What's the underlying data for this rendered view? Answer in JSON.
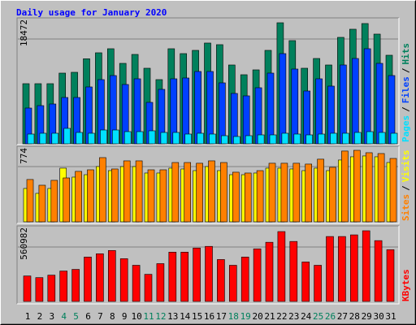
{
  "chart_data": [
    {
      "type": "bar",
      "title": "Daily usage for January 2020",
      "legend_separator": "/",
      "ylim": [
        0,
        18472
      ],
      "yticks": [
        18472
      ],
      "grid": true,
      "series": [
        {
          "name": "Hits",
          "color": "#00805c",
          "values": [
            9176,
            9176,
            9176,
            10788,
            10912,
            12980,
            13888,
            14508,
            12276,
            13640,
            11532,
            9796,
            14508,
            13764,
            14260,
            15376,
            15128,
            12028,
            10540,
            11284,
            14260,
            18472,
            15748,
            11532,
            13020,
            12028,
            16244,
            17484,
            18352,
            16740,
            13516
          ]
        },
        {
          "name": "Files",
          "color": "#0040ff",
          "values": [
            5456,
            5828,
            6076,
            7068,
            7068,
            8680,
            9796,
            10416,
            9052,
            9920,
            6324,
            8308,
            9920,
            10044,
            11036,
            11036,
            9300,
            7688,
            7316,
            8556,
            10788,
            13764,
            11408,
            8060,
            9920,
            8804,
            12028,
            13020,
            14508,
            12276,
            10416
          ]
        },
        {
          "name": "Pages",
          "color": "#00e0ff",
          "values": [
            1488,
            1612,
            1612,
            2356,
            1736,
            1612,
            2108,
            2108,
            1860,
            1860,
            1984,
            1736,
            1736,
            1488,
            1612,
            1488,
            1240,
            1116,
            1240,
            1364,
            1364,
            1612,
            1488,
            1364,
            1488,
            1612,
            1612,
            1736,
            1860,
            1736,
            1612
          ]
        }
      ]
    },
    {
      "type": "bar",
      "legend_separator": "/",
      "ylim": [
        0,
        774
      ],
      "yticks": [
        774
      ],
      "grid": true,
      "series": [
        {
          "name": "Visits",
          "color": "#ffff00",
          "values": [
            361,
            308,
            361,
            581,
            484,
            510,
            598,
            554,
            598,
            598,
            528,
            528,
            581,
            572,
            554,
            598,
            554,
            510,
            510,
            528,
            581,
            581,
            572,
            554,
            581,
            554,
            669,
            704,
            713,
            704,
            642
          ]
        },
        {
          "name": "Sites",
          "color": "#ff8000",
          "values": [
            458,
            396,
            449,
            475,
            546,
            563,
            695,
            572,
            660,
            660,
            563,
            563,
            642,
            642,
            634,
            660,
            642,
            537,
            528,
            554,
            634,
            634,
            634,
            625,
            678,
            590,
            766,
            774,
            748,
            739,
            686
          ]
        }
      ]
    },
    {
      "type": "bar",
      "ylim": [
        0,
        560982
      ],
      "yticks": [
        560982
      ],
      "grid": true,
      "categories": [
        "1",
        "2",
        "3",
        "4",
        "5",
        "6",
        "7",
        "8",
        "9",
        "10",
        "11",
        "12",
        "13",
        "14",
        "15",
        "16",
        "17",
        "18",
        "19",
        "20",
        "21",
        "22",
        "23",
        "24",
        "25",
        "26",
        "27",
        "28",
        "29",
        "30",
        "31"
      ],
      "category_colors": [
        "#000000",
        "#000000",
        "#000000",
        "#00805c",
        "#00805c",
        "#000000",
        "#000000",
        "#000000",
        "#000000",
        "#000000",
        "#00805c",
        "#00805c",
        "#000000",
        "#000000",
        "#000000",
        "#000000",
        "#000000",
        "#00805c",
        "#00805c",
        "#000000",
        "#000000",
        "#000000",
        "#000000",
        "#000000",
        "#00805c",
        "#00805c",
        "#000000",
        "#000000",
        "#000000",
        "#000000",
        "#000000"
      ],
      "series": [
        {
          "name": "KBytes",
          "color": "#ff0000",
          "values": [
            202213,
            189167,
            208736,
            241351,
            254397,
            352242,
            378334,
            404426,
            339196,
            287012,
            215259,
            300058,
            391380,
            391380,
            423995,
            437041,
            332673,
            287012,
            352242,
            417472,
            469656,
            554455,
            476179,
            313104,
            287012,
            515317,
            515317,
            528363,
            560982,
            482702,
            410949
          ]
        }
      ]
    }
  ]
}
